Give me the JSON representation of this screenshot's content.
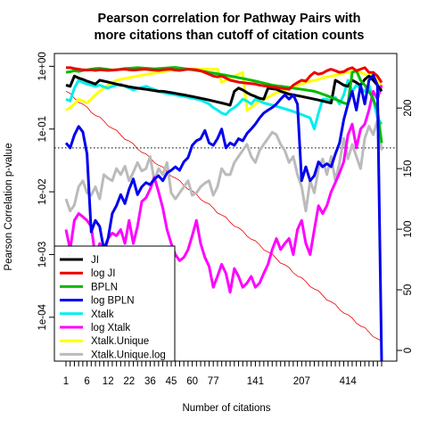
{
  "chart_data": {
    "type": "line",
    "title": [
      "Pearson correlation for Pathway Pairs with",
      "more citations than cutoff of citation counts"
    ],
    "xlabel": "Number of citations",
    "ylabel": "Pearson Correlation p-value",
    "left_axis": {
      "scale": "log",
      "ylim": [
        2e-05,
        1.6
      ],
      "ticks": [
        1,
        0.1,
        0.01,
        0.001,
        0.0001
      ],
      "tick_labels": [
        "1e+00",
        "1e-01",
        "1e-02",
        "1e-03",
        "1e-04"
      ]
    },
    "right_axis": {
      "ylim": [
        0,
        245
      ],
      "ticks": [
        0,
        50,
        100,
        150,
        200
      ],
      "tick_labels": [
        "0",
        "50",
        "100",
        "150",
        "200"
      ]
    },
    "x_tick_labels": [
      "1",
      "6",
      "12",
      "22",
      "36",
      "45",
      "60",
      "77",
      "141",
      "207",
      "414"
    ],
    "threshold_line": {
      "value": 0.05,
      "style": "dotted"
    },
    "legend": {
      "position": "bottom-left",
      "entries": [
        "JI",
        "log JI",
        "BPLN",
        "log BPLN",
        "Xtalk",
        "log Xtalk",
        "Xtalk.Unique",
        "Xtalk.Unique.log"
      ]
    },
    "n_points": 76,
    "series": [
      {
        "name": "JI",
        "color": "#000000",
        "values": [
          0.5,
          0.48,
          0.7,
          0.65,
          0.62,
          0.58,
          0.55,
          0.52,
          0.6,
          0.58,
          0.56,
          0.54,
          0.52,
          0.5,
          0.49,
          0.47,
          0.46,
          0.45,
          0.44,
          0.43,
          0.42,
          0.41,
          0.4,
          0.4,
          0.39,
          0.38,
          0.37,
          0.36,
          0.35,
          0.34,
          0.33,
          0.32,
          0.31,
          0.3,
          0.29,
          0.28,
          0.27,
          0.26,
          0.25,
          0.24,
          0.4,
          0.45,
          0.42,
          0.38,
          0.35,
          0.33,
          0.31,
          0.3,
          0.45,
          0.44,
          0.43,
          0.4,
          0.38,
          0.36,
          0.35,
          0.34,
          0.33,
          0.32,
          0.31,
          0.3,
          0.29,
          0.28,
          0.27,
          0.26,
          0.6,
          0.55,
          0.5,
          0.48,
          0.6,
          0.55,
          0.5,
          0.62,
          0.7,
          0.6,
          0.5,
          0.4
        ]
      },
      {
        "name": "log JI",
        "color": "#ee0000",
        "values": [
          0.95,
          0.95,
          0.92,
          0.9,
          0.88,
          0.87,
          0.88,
          0.86,
          0.88,
          0.87,
          0.86,
          0.87,
          0.88,
          0.89,
          0.9,
          0.88,
          0.87,
          0.88,
          0.89,
          0.9,
          0.88,
          0.87,
          0.86,
          0.88,
          0.89,
          0.9,
          0.87,
          0.86,
          0.88,
          0.9,
          0.89,
          0.88,
          0.85,
          0.8,
          0.75,
          0.7,
          0.68,
          0.7,
          0.65,
          0.6,
          0.58,
          0.56,
          0.55,
          0.54,
          0.53,
          0.52,
          0.5,
          0.49,
          0.48,
          0.47,
          0.46,
          0.45,
          0.44,
          0.43,
          0.5,
          0.55,
          0.6,
          0.58,
          0.7,
          0.8,
          0.75,
          0.78,
          0.85,
          0.9,
          0.85,
          0.8,
          0.82,
          0.9,
          0.95,
          0.85,
          0.9,
          0.95,
          0.8,
          0.8,
          0.7,
          0.55
        ]
      },
      {
        "name": "BPLN",
        "color": "#00bb00",
        "values": [
          0.8,
          0.82,
          0.85,
          0.83,
          0.86,
          0.88,
          0.9,
          0.92,
          0.93,
          0.91,
          0.89,
          0.87,
          0.88,
          0.9,
          0.92,
          0.93,
          0.94,
          0.95,
          0.94,
          0.93,
          0.92,
          0.91,
          0.92,
          0.93,
          0.94,
          0.95,
          0.96,
          0.94,
          0.92,
          0.9,
          0.88,
          0.86,
          0.84,
          0.82,
          0.8,
          0.78,
          0.76,
          0.74,
          0.72,
          0.7,
          0.68,
          0.66,
          0.64,
          0.62,
          0.6,
          0.58,
          0.56,
          0.54,
          0.52,
          0.5,
          0.49,
          0.48,
          0.47,
          0.46,
          0.45,
          0.44,
          0.43,
          0.42,
          0.41,
          0.4,
          0.38,
          0.36,
          0.34,
          0.32,
          0.3,
          0.28,
          0.26,
          0.25,
          0.8,
          0.85,
          0.6,
          0.5,
          0.4,
          0.3,
          0.2,
          0.06
        ]
      },
      {
        "name": "log BPLN",
        "color": "#0000ee",
        "values": [
          0.06,
          0.05,
          0.08,
          0.11,
          0.09,
          0.04,
          0.0023,
          0.0035,
          0.0028,
          0.0012,
          0.0018,
          0.0045,
          0.006,
          0.009,
          0.0065,
          0.011,
          0.016,
          0.009,
          0.012,
          0.014,
          0.013,
          0.016,
          0.018,
          0.015,
          0.02,
          0.022,
          0.025,
          0.022,
          0.03,
          0.035,
          0.055,
          0.065,
          0.07,
          0.095,
          0.06,
          0.055,
          0.07,
          0.1,
          0.05,
          0.06,
          0.055,
          0.07,
          0.065,
          0.085,
          0.1,
          0.12,
          0.15,
          0.18,
          0.2,
          0.22,
          0.25,
          0.3,
          0.35,
          0.3,
          0.35,
          0.25,
          0.015,
          0.025,
          0.015,
          0.018,
          0.03,
          0.025,
          0.028,
          0.025,
          0.04,
          0.06,
          0.14,
          0.25,
          0.4,
          0.2,
          0.5,
          0.25,
          0.6,
          0.72,
          0.5,
          2e-05
        ]
      },
      {
        "name": "log Xtalk",
        "color": "#ff00ff",
        "values": [
          0.0025,
          0.0012,
          0.0035,
          0.0045,
          0.004,
          0.0035,
          0.0028,
          0.0009,
          0.0015,
          0.001,
          0.0018,
          0.0022,
          0.002,
          0.0025,
          0.0015,
          0.0035,
          0.0015,
          0.0028,
          0.007,
          0.008,
          0.011,
          0.017,
          0.01,
          0.0055,
          0.0025,
          0.0015,
          0.001,
          0.0008,
          0.0009,
          0.0012,
          0.002,
          0.0035,
          0.0015,
          0.0009,
          0.00065,
          0.0003,
          0.00045,
          0.0007,
          0.0005,
          0.00025,
          0.0006,
          0.00045,
          0.0003,
          0.00035,
          0.00045,
          0.0003,
          0.00035,
          0.0005,
          0.0007,
          0.0012,
          0.0018,
          0.0012,
          0.0015,
          0.0018,
          0.001,
          0.0025,
          0.0035,
          0.0015,
          0.001,
          0.0025,
          0.006,
          0.0045,
          0.006,
          0.01,
          0.014,
          0.02,
          0.03,
          0.08,
          0.12,
          0.05,
          0.1,
          0.12,
          0.2,
          0.4,
          0.3,
          0.5
        ]
      },
      {
        "name": "Xtalk",
        "color": "#00eeee",
        "values": [
          0.3,
          0.28,
          0.45,
          0.6,
          0.55,
          0.52,
          0.5,
          0.48,
          0.5,
          0.47,
          0.45,
          0.48,
          0.5,
          0.52,
          0.48,
          0.45,
          0.42,
          0.44,
          0.46,
          0.48,
          0.45,
          0.43,
          0.4,
          0.38,
          0.37,
          0.36,
          0.35,
          0.34,
          0.33,
          0.32,
          0.31,
          0.3,
          0.29,
          0.27,
          0.25,
          0.22,
          0.2,
          0.18,
          0.17,
          0.2,
          0.22,
          0.25,
          0.3,
          0.28,
          0.25,
          0.3,
          0.28,
          0.26,
          0.25,
          0.24,
          0.23,
          0.22,
          0.21,
          0.2,
          0.19,
          0.18,
          0.17,
          0.16,
          0.15,
          0.1,
          0.18,
          0.3,
          0.3,
          0.28,
          0.32,
          0.25,
          0.35,
          0.6,
          0.4,
          0.5,
          0.45,
          0.4,
          0.5,
          0.3,
          0.15,
          0.12
        ]
      },
      {
        "name": "Xtalk.Unique",
        "color": "#ffff00",
        "values": [
          0.2,
          0.22,
          0.25,
          0.3,
          0.28,
          0.26,
          0.3,
          0.35,
          0.4,
          0.45,
          0.5,
          0.55,
          0.6,
          0.62,
          0.64,
          0.66,
          0.68,
          0.7,
          0.72,
          0.74,
          0.76,
          0.78,
          0.8,
          0.82,
          0.84,
          0.86,
          0.88,
          0.9,
          0.9,
          0.9,
          0.9,
          0.9,
          0.9,
          0.9,
          0.9,
          0.9,
          0.9,
          0.55,
          0.6,
          0.65,
          0.7,
          0.75,
          0.8,
          0.2,
          0.22,
          0.25,
          0.28,
          0.3,
          0.32,
          0.35,
          0.38,
          0.4,
          0.42,
          0.45,
          0.48,
          0.5,
          0.52,
          0.55,
          0.58,
          0.6,
          0.62,
          0.65,
          0.68,
          0.7,
          0.72,
          0.75,
          0.78,
          0.8,
          0.82,
          0.85,
          0.8,
          0.75,
          0.7,
          0.8,
          0.6,
          0.5
        ]
      }
    ],
    "right_series": {
      "name": "Xtalk.Unique.log",
      "color": "#bbbbbb",
      "axis": "right",
      "values": [
        125,
        115,
        120,
        135,
        140,
        130,
        128,
        135,
        125,
        145,
        142,
        140,
        150,
        145,
        152,
        140,
        147,
        155,
        148,
        150,
        160,
        140,
        150,
        145,
        155,
        130,
        125,
        130,
        135,
        140,
        128,
        130,
        135,
        138,
        140,
        128,
        135,
        150,
        145,
        145,
        155,
        160,
        165,
        170,
        160,
        155,
        165,
        170,
        175,
        180,
        178,
        170,
        165,
        155,
        160,
        145,
        135,
        115,
        140,
        130,
        150,
        158,
        145,
        160,
        140,
        155,
        175,
        158,
        170,
        160,
        150,
        175,
        185,
        178,
        190,
        165
      ]
    },
    "red_line": {
      "color": "#ee0000",
      "from": 0.4,
      "to": 4e-05
    }
  }
}
